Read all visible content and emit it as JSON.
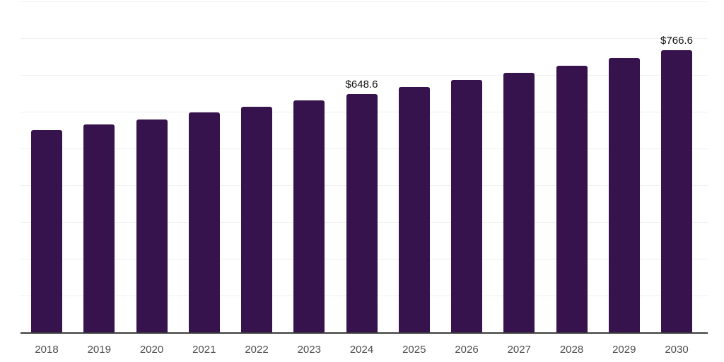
{
  "chart_data": {
    "type": "bar",
    "title": "",
    "xlabel": "",
    "ylabel": "",
    "categories": [
      "2018",
      "2019",
      "2020",
      "2021",
      "2022",
      "2023",
      "2024",
      "2025",
      "2026",
      "2027",
      "2028",
      "2029",
      "2030"
    ],
    "values": [
      550.0,
      564.5,
      578.6,
      597.8,
      612.3,
      630.8,
      648.6,
      666.9,
      685.7,
      705.1,
      724.9,
      745.4,
      766.6
    ],
    "data_labels": {
      "2024": "$648.6",
      "2030": "$766.6"
    },
    "ylim": [
      0,
      900
    ],
    "grid_step": 100,
    "grid": true,
    "legend": false,
    "y_tick_labels_visible": false,
    "colors": {
      "bar": "#36134D",
      "gridline": "#F0F0F0",
      "axis": "#3B3B3B",
      "tick_label": "#4D4D4D",
      "data_label": "#111111",
      "background": "#FFFFFF"
    }
  }
}
